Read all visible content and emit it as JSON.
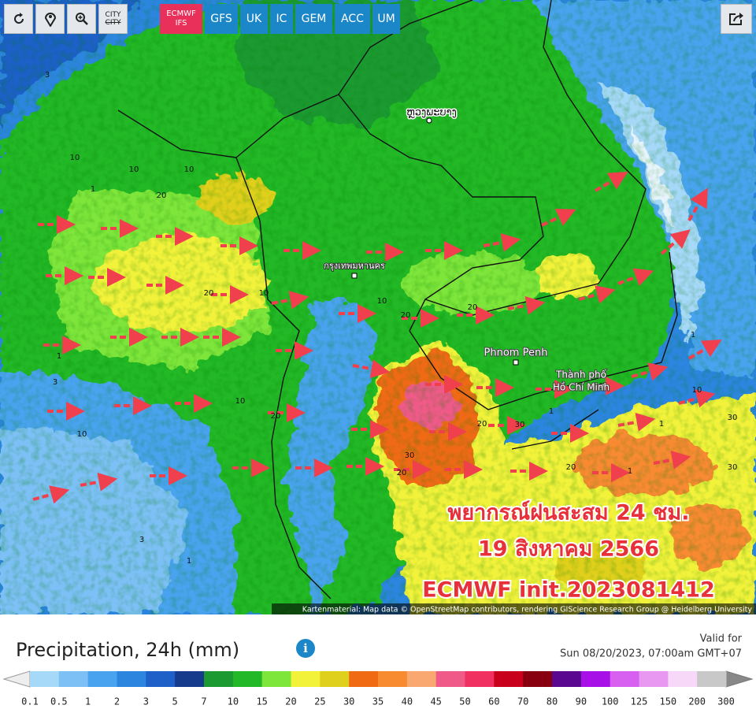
{
  "toolbar": {
    "city_label": "CITY",
    "active_model": [
      "ECMWF",
      "IFS"
    ],
    "models": [
      "GFS",
      "UK",
      "IC",
      "GEM",
      "ACC",
      "UM"
    ]
  },
  "map": {
    "places": [
      "ຫຼວງພະບາງ",
      "กรุงเทพมหานคร",
      "Phnom Penh",
      "Thành phố",
      "Hồ Chí Minh"
    ],
    "overlay": [
      "พยากรณ์ฝนสะสม 24 ชม.",
      "19 สิงหาคม 2566",
      "ECMWF init.2023081412"
    ],
    "contour_labels": [
      "3",
      "10",
      "10",
      "1",
      "20",
      "10",
      "20",
      "10",
      "10",
      "20",
      "20",
      "30",
      "30",
      "20",
      "1",
      "1",
      "1",
      "10",
      "3",
      "1",
      "10",
      "20",
      "30",
      "20",
      "30",
      "20",
      "1",
      "10",
      "3",
      "1"
    ],
    "attribution": "Kartenmaterial: Map data © OpenStreetMap contributors, rendering GIScience Research Group @ Heidelberg University"
  },
  "legend": {
    "title": "Precipitation, 24h (mm)",
    "valid_label": "Valid for",
    "valid_time": "Sun 08/20/2023, 07:00am GMT+07",
    "ticks": [
      "0.1",
      "0.5",
      "1",
      "2",
      "3",
      "5",
      "7",
      "10",
      "15",
      "20",
      "25",
      "30",
      "35",
      "40",
      "45",
      "50",
      "60",
      "70",
      "80",
      "90",
      "100",
      "125",
      "150",
      "200",
      "300"
    ],
    "colors": [
      "#a6d8f8",
      "#7cc0f5",
      "#4aa3ee",
      "#2c86e0",
      "#1e60c8",
      "#163a8c",
      "#1a9a30",
      "#22b828",
      "#7ee63a",
      "#f2f23a",
      "#e0d01e",
      "#f06a14",
      "#f88a30",
      "#f8a870",
      "#f05a88",
      "#f03060",
      "#c8001c",
      "#880010",
      "#5a0890",
      "#a810e8",
      "#d860f0",
      "#e898f0",
      "#f8d8f8",
      "#c8c8c8"
    ]
  }
}
